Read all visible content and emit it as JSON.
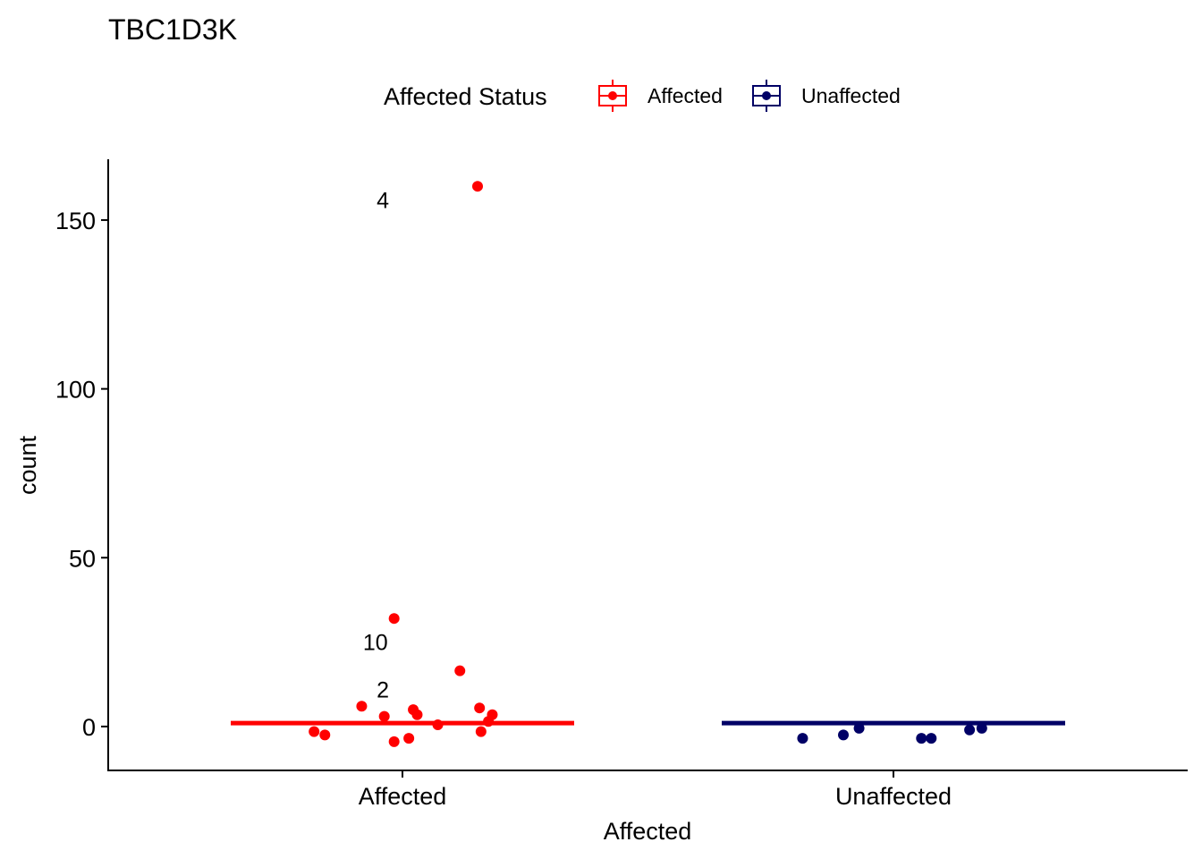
{
  "chart_data": {
    "type": "scatter",
    "title": "TBC1D3K",
    "xlabel": "Affected",
    "ylabel": "count",
    "ylim": [
      -13,
      168
    ],
    "yticks": [
      0,
      50,
      100,
      150
    ],
    "categories": [
      "Affected",
      "Unaffected"
    ],
    "grid": false,
    "legend": {
      "title": "Affected Status",
      "position": "top",
      "entries": [
        "Affected",
        "Unaffected"
      ]
    },
    "series": [
      {
        "name": "Affected",
        "color": "#ff0000",
        "category": "Affected",
        "median": 1,
        "points": [
          {
            "offset": 0.153,
            "y": 160
          },
          {
            "offset": -0.017,
            "y": 32
          },
          {
            "offset": 0.117,
            "y": 16.5
          },
          {
            "offset": -0.083,
            "y": 6
          },
          {
            "offset": 0.157,
            "y": 5.5
          },
          {
            "offset": 0.022,
            "y": 5
          },
          {
            "offset": 0.03,
            "y": 3.5
          },
          {
            "offset": 0.183,
            "y": 3.5
          },
          {
            "offset": -0.037,
            "y": 3
          },
          {
            "offset": 0.175,
            "y": 1.5
          },
          {
            "offset": 0.072,
            "y": 0.5
          },
          {
            "offset": -0.18,
            "y": -1.5
          },
          {
            "offset": 0.16,
            "y": -1.5
          },
          {
            "offset": -0.158,
            "y": -2.5
          },
          {
            "offset": 0.013,
            "y": -3.5
          },
          {
            "offset": -0.017,
            "y": -4.5
          }
        ],
        "labels": [
          {
            "text": "4",
            "offset": -0.04,
            "y": 156
          },
          {
            "text": "10",
            "offset": -0.055,
            "y": 25
          },
          {
            "text": "2",
            "offset": -0.04,
            "y": 11
          }
        ]
      },
      {
        "name": "Unaffected",
        "color": "#000066",
        "category": "Unaffected",
        "median": 1,
        "points": [
          {
            "offset": -0.185,
            "y": -3.5
          },
          {
            "offset": -0.102,
            "y": -2.5
          },
          {
            "offset": -0.07,
            "y": -0.5
          },
          {
            "offset": 0.057,
            "y": -3.5
          },
          {
            "offset": 0.077,
            "y": -3.5
          },
          {
            "offset": 0.155,
            "y": -1
          },
          {
            "offset": 0.18,
            "y": -0.5
          }
        ],
        "labels": []
      }
    ]
  }
}
